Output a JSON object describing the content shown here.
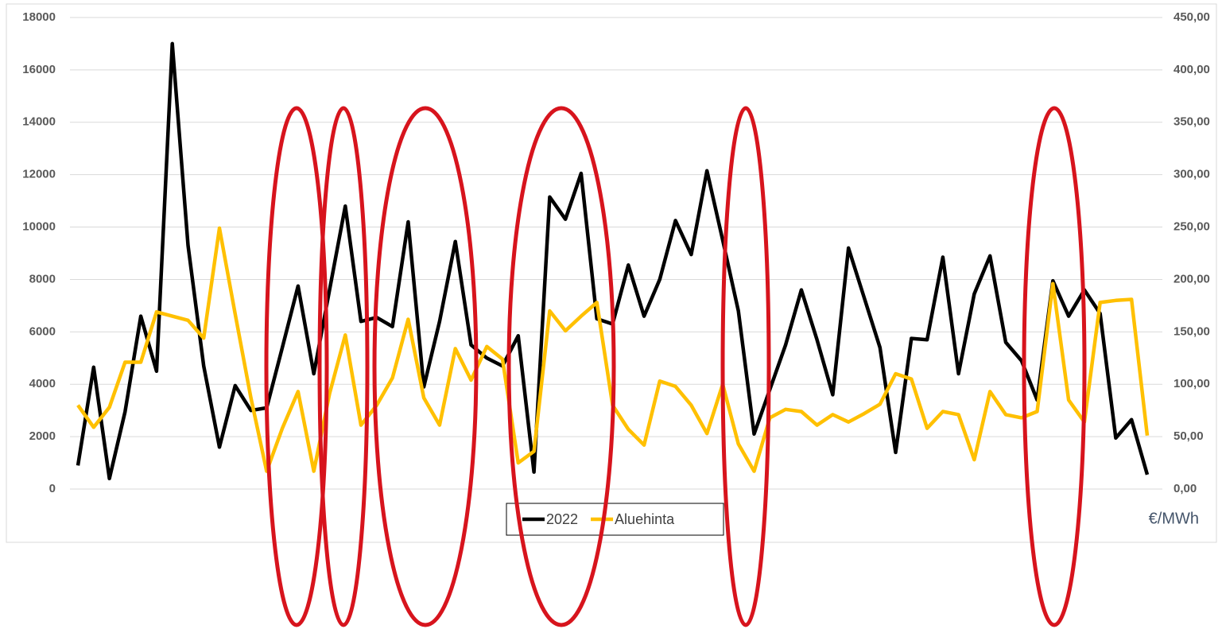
{
  "chart_data": {
    "type": "line",
    "categories": [
      null,
      null,
      null,
      null,
      null,
      null,
      null,
      null,
      null,
      null,
      null,
      null,
      null,
      null,
      null,
      null,
      null,
      null,
      null,
      null,
      null,
      null,
      null,
      null,
      null,
      null,
      null,
      null,
      null,
      null,
      null,
      null,
      null,
      null,
      null,
      null,
      null,
      null,
      null,
      null,
      null,
      null,
      null,
      null,
      null,
      null,
      null,
      null,
      null,
      null,
      null,
      null,
      null,
      null,
      null,
      null,
      null,
      null,
      null,
      null,
      null,
      null,
      null,
      null,
      null,
      null,
      null,
      null,
      null
    ],
    "series": [
      {
        "name": "2022",
        "color": "#000000",
        "values": [
          900,
          4650,
          400,
          2950,
          6600,
          4500,
          17000,
          9300,
          4700,
          1600,
          3950,
          3000,
          3100,
          5400,
          7750,
          4400,
          7600,
          10800,
          6400,
          6550,
          6200,
          10200,
          3900,
          6400,
          9450,
          5500,
          5000,
          4700,
          5850,
          650,
          11150,
          10300,
          12050,
          6500,
          6300,
          8550,
          6600,
          8000,
          10250,
          8950,
          12150,
          9500,
          6800,
          2100,
          3800,
          5500,
          7600,
          5700,
          3600,
          9200,
          7300,
          5400,
          1400,
          5750,
          5700,
          8850,
          4400,
          7450,
          8900,
          5600,
          4900,
          3400,
          7950,
          6600,
          7600,
          6700,
          1950,
          2650,
          550
        ]
      },
      {
        "name": "Aluehinta",
        "color": "#ffc000",
        "axis": "y2",
        "values": [
          80,
          59,
          78,
          121,
          121,
          169,
          165,
          161,
          144,
          249,
          167,
          87,
          17,
          58,
          93,
          17,
          91,
          147,
          61,
          80,
          106,
          162,
          87,
          61,
          134,
          104,
          136,
          124,
          25,
          36,
          170,
          151,
          165,
          178,
          80,
          57,
          42,
          103,
          98,
          80,
          53,
          100,
          43,
          17,
          68,
          76,
          74,
          61,
          71,
          64,
          72,
          81,
          110,
          105,
          58,
          74,
          71,
          28,
          93,
          71,
          68,
          74,
          196,
          85,
          64,
          178,
          180,
          181,
          51
        ]
      }
    ],
    "ylim": [
      0,
      18000
    ],
    "yticks": [
      0,
      2000,
      4000,
      6000,
      8000,
      10000,
      12000,
      14000,
      16000,
      18000
    ],
    "y2lim": [
      0,
      450
    ],
    "y2ticks": [
      {
        "value": 0,
        "label": "0,00"
      },
      {
        "value": 50,
        "label": "50,00"
      },
      {
        "value": 100,
        "label": "100,00"
      },
      {
        "value": 150,
        "label": "150,00"
      },
      {
        "value": 200,
        "label": "200,00"
      },
      {
        "value": 250,
        "label": "250,00"
      },
      {
        "value": 300,
        "label": "300,00"
      },
      {
        "value": 350,
        "label": "350,00"
      },
      {
        "value": 400,
        "label": "400,00"
      },
      {
        "value": 450,
        "label": "450,00"
      }
    ],
    "y2_unit": "€/MWh",
    "grid": true,
    "legend": "bottom"
  }
}
